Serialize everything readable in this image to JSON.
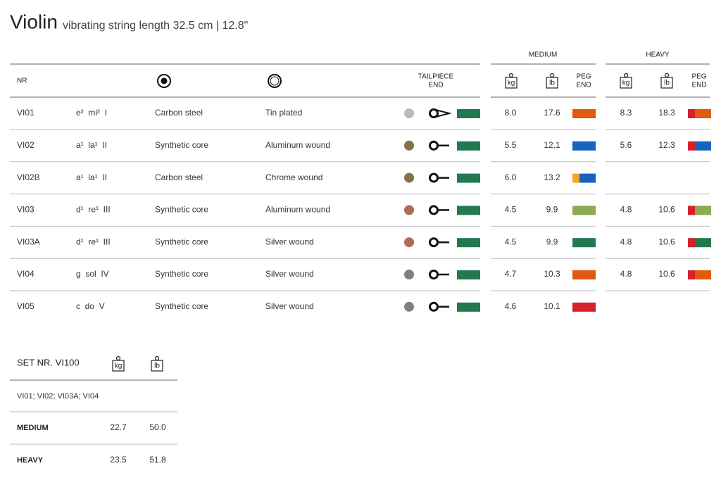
{
  "title": "Violin",
  "subtitle": "vibrating string length 32.5 cm | 12.8\"",
  "groups": [
    "MEDIUM",
    "HEAVY"
  ],
  "columns": {
    "nr": "NR",
    "tailpiece": [
      "TAILPIECE",
      "END"
    ],
    "peg": [
      "PEG",
      "END"
    ],
    "kg": "kg",
    "lb": "lb"
  },
  "rows": [
    {
      "nr": "VI01",
      "note": "e²  mi²  I",
      "core": "Carbon steel",
      "winding": "Tin plated",
      "dot": "#bbbbbb",
      "tail": "loop",
      "tail_color": "#23794d",
      "medium": [
        "8.0",
        "17.6"
      ],
      "medium_peg": [
        "#e05a0f"
      ],
      "heavy": [
        "8.3",
        "18.3"
      ],
      "heavy_peg": [
        "#d7202a",
        "#e05a0f"
      ]
    },
    {
      "nr": "VI02",
      "note": "a¹  la¹  II",
      "core": "Synthetic core",
      "winding": "Aluminum wound",
      "dot": "#85704a",
      "tail": "ball",
      "tail_color": "#23794d",
      "medium": [
        "5.5",
        "12.1"
      ],
      "medium_peg": [
        "#1565c0"
      ],
      "heavy": [
        "5.6",
        "12.3"
      ],
      "heavy_peg": [
        "#d7202a",
        "#1565c0"
      ]
    },
    {
      "nr": "VI02B",
      "note": "a¹  la¹  II",
      "core": "Carbon steel",
      "winding": "Chrome wound",
      "dot": "#85704a",
      "tail": "ball",
      "tail_color": "#23794d",
      "medium": [
        "6.0",
        "13.2"
      ],
      "medium_peg": [
        "#f5a623",
        "#1565c0"
      ]
    },
    {
      "nr": "VI03",
      "note": "d¹  re¹  III",
      "core": "Synthetic core",
      "winding": "Aluminum wound",
      "dot": "#b06a55",
      "tail": "ball",
      "tail_color": "#23794d",
      "medium": [
        "4.5",
        "9.9"
      ],
      "medium_peg": [
        "#8aab4f"
      ],
      "heavy": [
        "4.8",
        "10.6"
      ],
      "heavy_peg": [
        "#d7202a",
        "#8aab4f"
      ]
    },
    {
      "nr": "VI03A",
      "note": "d¹  re¹  III",
      "core": "Synthetic core",
      "winding": "Silver wound",
      "dot": "#b06a55",
      "tail": "ball",
      "tail_color": "#23794d",
      "medium": [
        "4.5",
        "9.9"
      ],
      "medium_peg": [
        "#23794d"
      ],
      "heavy": [
        "4.8",
        "10.6"
      ],
      "heavy_peg": [
        "#d7202a",
        "#23794d"
      ]
    },
    {
      "nr": "VI04",
      "note": "g  sol  IV",
      "core": "Synthetic core",
      "winding": "Silver wound",
      "dot": "#808080",
      "tail": "ball",
      "tail_color": "#23794d",
      "medium": [
        "4.7",
        "10.3"
      ],
      "medium_peg": [
        "#e05a0f"
      ],
      "heavy": [
        "4.8",
        "10.6"
      ],
      "heavy_peg": [
        "#d7202a",
        "#e05a0f"
      ]
    },
    {
      "nr": "VI05",
      "note": "c  do  V",
      "core": "Synthetic core",
      "winding": "Silver wound",
      "dot": "#808080",
      "tail": "ball",
      "tail_color": "#23794d",
      "medium": [
        "4.6",
        "10.1"
      ],
      "medium_peg": [
        "#d7202a"
      ]
    }
  ],
  "set": {
    "title": "SET NR. VI100",
    "strings": "VI01; VI02; VI03A; VI04",
    "rows": [
      {
        "name": "MEDIUM",
        "kg": "22.7",
        "lb": "50.0"
      },
      {
        "name": "HEAVY",
        "kg": "23.5",
        "lb": "51.8"
      }
    ]
  }
}
